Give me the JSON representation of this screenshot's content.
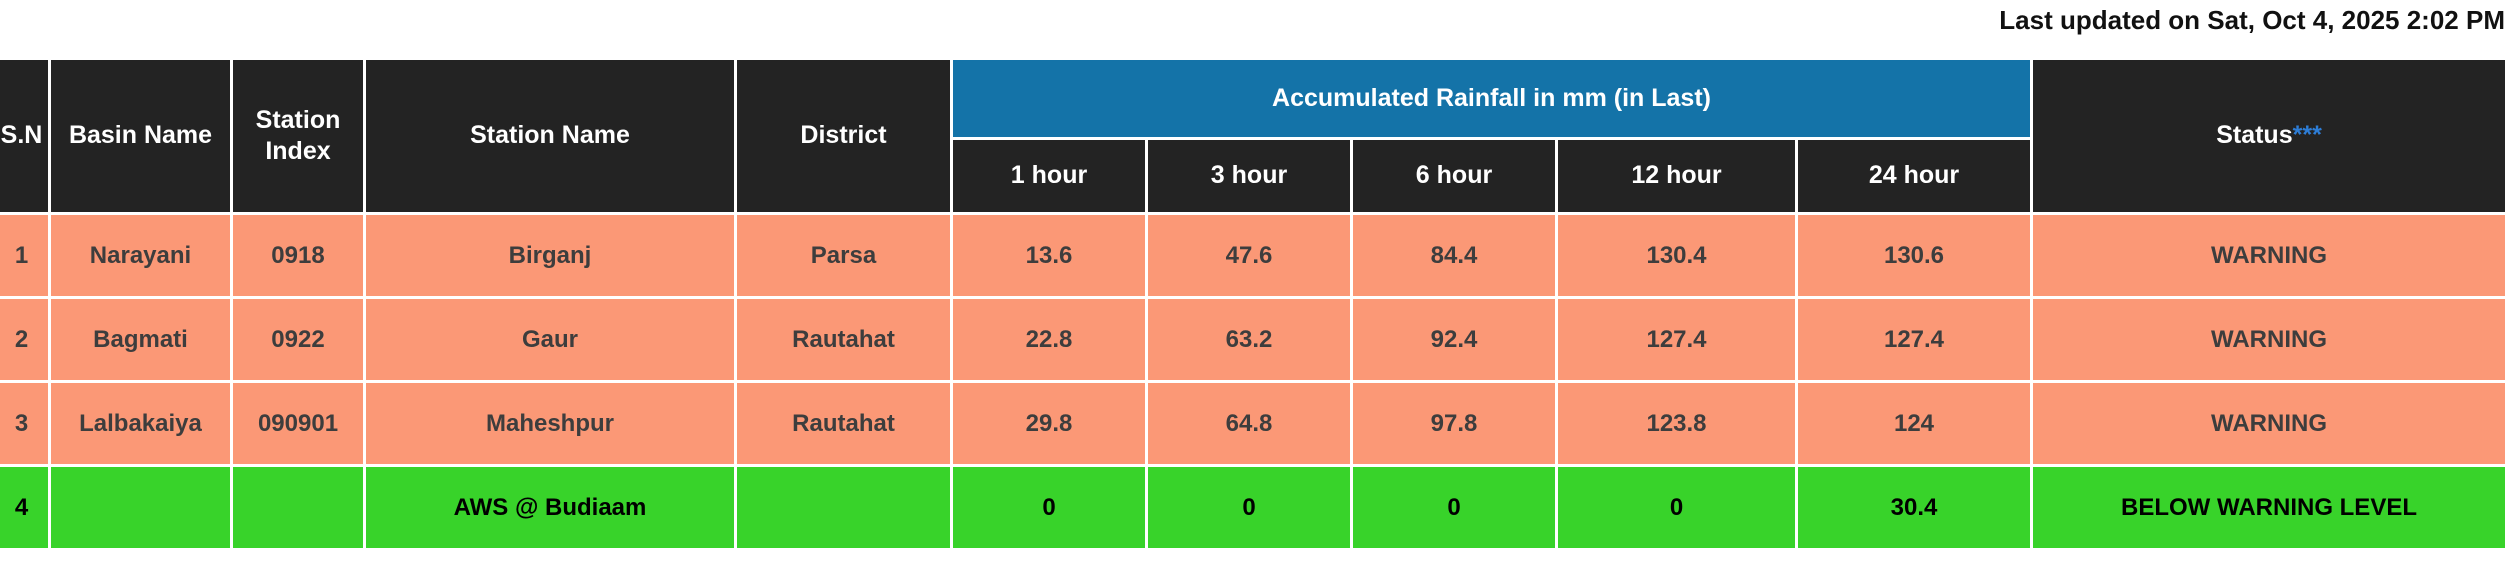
{
  "page": {
    "last_updated": "Last updated on Sat, Oct 4, 2025 2:02 PM"
  },
  "colors": {
    "header_bg": "#232323",
    "rainfall_band_bg": "#1473a8",
    "warning_row_bg": "#fb9876",
    "below_warning_row_bg": "#38d32a",
    "status_asterisk_blue": "#2d7dd6",
    "cell_border": "#ffffff"
  },
  "table": {
    "headers": {
      "sn": "S.N",
      "basin": "Basin Name",
      "station_index": "Station Index",
      "station_name": "Station Name",
      "district": "District",
      "rainfall_group": "Accumulated Rainfall in mm (in Last)",
      "hours": [
        "1 hour",
        "3 hour",
        "6 hour",
        "12 hour",
        "24 hour"
      ],
      "status": "Status",
      "status_marker": "***"
    },
    "rows": [
      {
        "sn": "1",
        "basin": "Narayani",
        "station_index": "0918",
        "station_name": "Birganj",
        "district": "Parsa",
        "rain_1h": "13.6",
        "rain_3h": "47.6",
        "rain_6h": "84.4",
        "rain_12h": "130.4",
        "rain_24h": "130.6",
        "status": "WARNING"
      },
      {
        "sn": "2",
        "basin": "Bagmati",
        "station_index": "0922",
        "station_name": "Gaur",
        "district": "Rautahat",
        "rain_1h": "22.8",
        "rain_3h": "63.2",
        "rain_6h": "92.4",
        "rain_12h": "127.4",
        "rain_24h": "127.4",
        "status": "WARNING"
      },
      {
        "sn": "3",
        "basin": "Lalbakaiya",
        "station_index": "090901",
        "station_name": "Maheshpur",
        "district": "Rautahat",
        "rain_1h": "29.8",
        "rain_3h": "64.8",
        "rain_6h": "97.8",
        "rain_12h": "123.8",
        "rain_24h": "124",
        "status": "WARNING"
      },
      {
        "sn": "4",
        "basin": "",
        "station_index": "",
        "station_name": "AWS @ Budiaam",
        "district": "",
        "rain_1h": "0",
        "rain_3h": "0",
        "rain_6h": "0",
        "rain_12h": "0",
        "rain_24h": "30.4",
        "status": "BELOW WARNING LEVEL"
      }
    ]
  }
}
